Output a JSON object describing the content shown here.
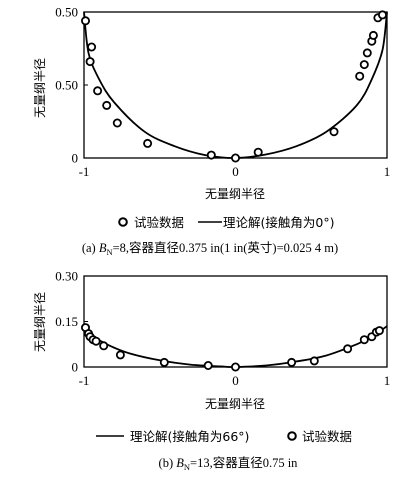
{
  "chart_data": [
    {
      "type": "scatter",
      "xlabel": "无量纲半径",
      "ylabel": "无量纲半径",
      "xlim": [
        -1,
        1
      ],
      "ylim": [
        0,
        0.5
      ],
      "xticks": [
        "-1",
        "0",
        "1"
      ],
      "yticks": [
        "0",
        "0.50",
        "0.50"
      ],
      "legend": {
        "marker_label": "试验数据",
        "line_label": "理论解(接触角为0°)",
        "order": [
          "marker",
          "line"
        ]
      },
      "caption": {
        "prefix": "(a) ",
        "symbol": "B",
        "subscript": "N",
        "rest": "=8,容器直径0.375 in(1 in(英寸)=0.025 4 m)"
      },
      "series": [
        {
          "name": "试验数据",
          "kind": "marker",
          "points": [
            [
              -0.99,
              0.47
            ],
            [
              -0.95,
              0.38
            ],
            [
              -0.96,
              0.33
            ],
            [
              -0.91,
              0.23
            ],
            [
              -0.85,
              0.18
            ],
            [
              -0.78,
              0.12
            ],
            [
              -0.58,
              0.05
            ],
            [
              -0.16,
              0.01
            ],
            [
              0.0,
              0.0
            ],
            [
              0.15,
              0.02
            ],
            [
              0.65,
              0.09
            ],
            [
              0.82,
              0.28
            ],
            [
              0.85,
              0.32
            ],
            [
              0.87,
              0.36
            ],
            [
              0.9,
              0.4
            ],
            [
              0.91,
              0.42
            ],
            [
              0.94,
              0.48
            ],
            [
              0.97,
              0.49
            ]
          ]
        },
        {
          "name": "理论解(接触角为0°)",
          "kind": "line",
          "points": [
            [
              -1.0,
              0.5
            ],
            [
              -0.97,
              0.36
            ],
            [
              -0.9,
              0.27
            ],
            [
              -0.8,
              0.19
            ],
            [
              -0.6,
              0.09
            ],
            [
              -0.4,
              0.04
            ],
            [
              -0.2,
              0.01
            ],
            [
              0.0,
              0.0
            ],
            [
              0.2,
              0.012
            ],
            [
              0.4,
              0.04
            ],
            [
              0.6,
              0.09
            ],
            [
              0.8,
              0.18
            ],
            [
              0.9,
              0.27
            ],
            [
              0.97,
              0.37
            ],
            [
              1.0,
              0.5
            ]
          ]
        }
      ]
    },
    {
      "type": "scatter",
      "xlabel": "无量纲半径",
      "ylabel": "无量纲半径",
      "xlim": [
        -1,
        1
      ],
      "ylim": [
        0,
        0.3
      ],
      "xticks": [
        "-1",
        "0",
        "1"
      ],
      "yticks": [
        "0",
        "0.15",
        "0.30"
      ],
      "legend": {
        "marker_label": "试验数据",
        "line_label": "理论解(接触角为66°)",
        "order": [
          "line",
          "marker"
        ]
      },
      "caption": {
        "prefix": "(b) ",
        "symbol": "B",
        "subscript": "N",
        "rest": "=13,容器直径0.75 in"
      },
      "series": [
        {
          "name": "试验数据",
          "kind": "marker",
          "points": [
            [
              -0.99,
              0.13
            ],
            [
              -0.97,
              0.11
            ],
            [
              -0.96,
              0.1
            ],
            [
              -0.94,
              0.09
            ],
            [
              -0.92,
              0.085
            ],
            [
              -0.87,
              0.07
            ],
            [
              -0.76,
              0.04
            ],
            [
              -0.47,
              0.015
            ],
            [
              -0.18,
              0.005
            ],
            [
              0.0,
              0.0
            ],
            [
              0.37,
              0.015
            ],
            [
              0.52,
              0.02
            ],
            [
              0.74,
              0.06
            ],
            [
              0.85,
              0.09
            ],
            [
              0.9,
              0.1
            ],
            [
              0.93,
              0.115
            ],
            [
              0.95,
              0.12
            ]
          ]
        },
        {
          "name": "理论解(接触角为66°)",
          "kind": "line",
          "points": [
            [
              -1.0,
              0.13
            ],
            [
              -0.95,
              0.105
            ],
            [
              -0.85,
              0.075
            ],
            [
              -0.7,
              0.045
            ],
            [
              -0.5,
              0.022
            ],
            [
              -0.3,
              0.008
            ],
            [
              -0.1,
              0.002
            ],
            [
              0.0,
              0.0
            ],
            [
              0.2,
              0.005
            ],
            [
              0.4,
              0.018
            ],
            [
              0.6,
              0.038
            ],
            [
              0.8,
              0.075
            ],
            [
              0.9,
              0.1
            ],
            [
              0.96,
              0.12
            ],
            [
              1.0,
              0.135
            ]
          ]
        }
      ]
    }
  ]
}
